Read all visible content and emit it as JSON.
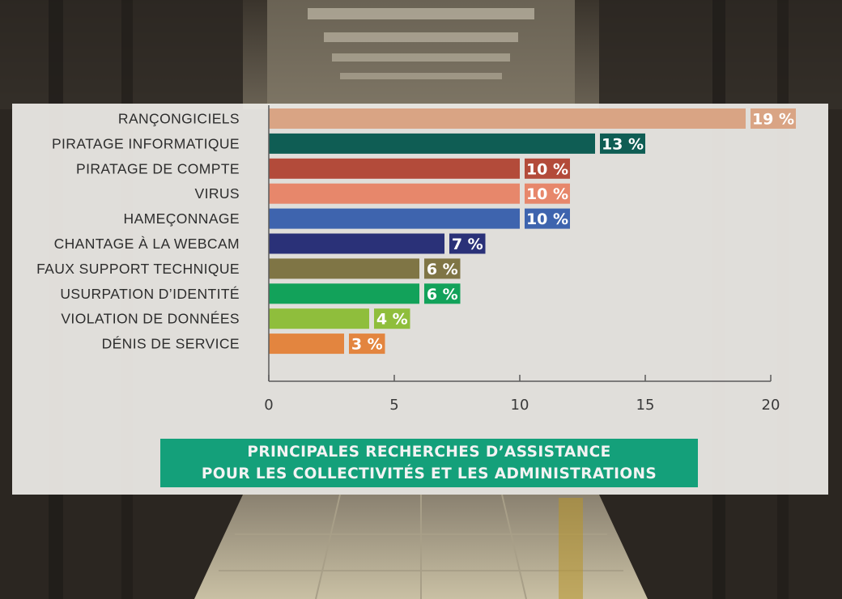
{
  "chart_data": {
    "type": "bar",
    "orientation": "horizontal",
    "title_lines": [
      "PRINCIPALES RECHERCHES D’ASSISTANCE",
      "POUR LES COLLECTIVITÉS ET LES ADMINISTRATIONS"
    ],
    "categories": [
      "RANÇONGICIELS",
      "PIRATAGE INFORMATIQUE",
      "PIRATAGE DE COMPTE",
      "VIRUS",
      "HAMEÇONNAGE",
      "CHANTAGE À LA WEBCAM",
      "FAUX SUPPORT TECHNIQUE",
      "USURPATION D’IDENTITÉ",
      "VIOLATION DE DONNÉES",
      "DÉNIS DE SERVICE"
    ],
    "values": [
      19,
      13,
      10,
      10,
      10,
      7,
      6,
      6,
      4,
      3
    ],
    "value_labels": [
      "19 %",
      "13 %",
      "10 %",
      "10 %",
      "10 %",
      "7 %",
      "6 %",
      "6 %",
      "4 %",
      "3 %"
    ],
    "colors": [
      "#d9a484",
      "#0f5d54",
      "#b34b3a",
      "#e7876b",
      "#3e64ae",
      "#2a3178",
      "#7f7545",
      "#12a25a",
      "#8fbe3c",
      "#e3853f"
    ],
    "xlim": [
      0,
      20
    ],
    "xticks": [
      "0",
      "5",
      "10",
      "15",
      "20"
    ],
    "grid": false,
    "legend": "none"
  }
}
